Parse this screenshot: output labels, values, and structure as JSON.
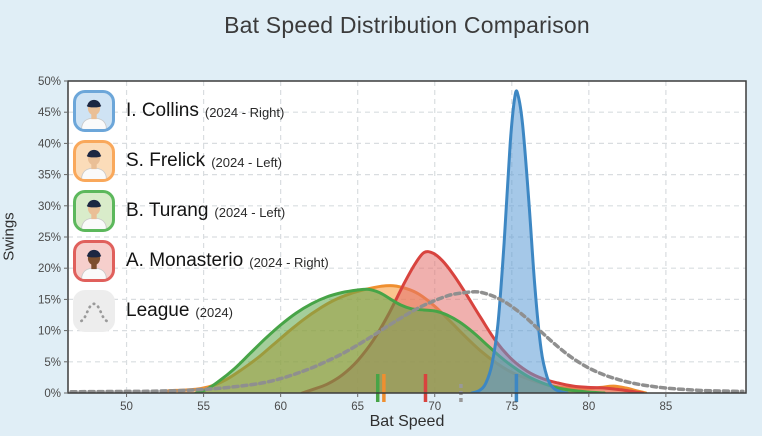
{
  "page": {
    "background": "#e0eef6"
  },
  "chart_data": {
    "type": "area",
    "title": "Bat Speed Distribution Comparison",
    "xlabel": "Bat Speed",
    "ylabel": "Swings",
    "xlim": [
      46.2,
      90.2
    ],
    "ylim": [
      0,
      50
    ],
    "x_ticks": [
      50,
      55,
      60,
      65,
      70,
      75,
      80,
      85
    ],
    "y_ticks": [
      0,
      5,
      10,
      15,
      20,
      25,
      30,
      35,
      40,
      45,
      50
    ],
    "y_tick_suffix": "%",
    "grid": true,
    "legend_position": "top-left",
    "plot_background": "#ffffff",
    "axis_color": "#3c3c3c",
    "grid_color": "#d9dde0",
    "draw_order": [
      "S. Frelick",
      "A. Monasterio",
      "B. Turang",
      "I. Collins",
      "League"
    ],
    "series": [
      {
        "name": "I. Collins",
        "meta": "(2024 - Right)",
        "line_color": "#3d87c3",
        "fill_color": "#5b9bd5",
        "fill_opacity": 0.55,
        "dash": null,
        "mean": 75.3,
        "avatar": {
          "type": "player",
          "border": "#6ca6d9",
          "bg": "#cfe3f4",
          "skin": "#eabf96",
          "cap": "#1c2742"
        },
        "points": [
          [
            72.4,
            0
          ],
          [
            72.9,
            0.4
          ],
          [
            73.3,
            1.5
          ],
          [
            73.7,
            4.5
          ],
          [
            74.1,
            11
          ],
          [
            74.5,
            24
          ],
          [
            74.9,
            40
          ],
          [
            75.2,
            47.5
          ],
          [
            75.4,
            47.8
          ],
          [
            75.7,
            43
          ],
          [
            76.1,
            31
          ],
          [
            76.5,
            17
          ],
          [
            76.9,
            7
          ],
          [
            77.3,
            2.5
          ],
          [
            77.7,
            0.8
          ],
          [
            78.2,
            0.2
          ],
          [
            78.6,
            0
          ]
        ]
      },
      {
        "name": "S. Frelick",
        "meta": "(2024 - Left)",
        "line_color": "#ef8f30",
        "fill_color": "#f79c43",
        "fill_opacity": 0.6,
        "dash": null,
        "mean": 66.7,
        "avatar": {
          "type": "player",
          "border": "#f9a85b",
          "bg": "#fbdcb9",
          "skin": "#eabf96",
          "cap": "#1c2742"
        },
        "points": [
          [
            52.3,
            0
          ],
          [
            52.7,
            0.35
          ],
          [
            53.5,
            0.45
          ],
          [
            54.5,
            0.6
          ],
          [
            55.5,
            1.1
          ],
          [
            56.5,
            2.2
          ],
          [
            57.5,
            3.8
          ],
          [
            58.5,
            5.6
          ],
          [
            59.5,
            7.7
          ],
          [
            60.5,
            9.8
          ],
          [
            61.5,
            11.8
          ],
          [
            62.5,
            13.5
          ],
          [
            63.5,
            14.9
          ],
          [
            64.5,
            15.9
          ],
          [
            65.5,
            16.6
          ],
          [
            66.5,
            17.1
          ],
          [
            67.3,
            17.2
          ],
          [
            68.2,
            16.7
          ],
          [
            69,
            15.8
          ],
          [
            70,
            13.9
          ],
          [
            71,
            11.5
          ],
          [
            72,
            9
          ],
          [
            73,
            6.7
          ],
          [
            74,
            4.8
          ],
          [
            75,
            3.3
          ],
          [
            76,
            2.3
          ],
          [
            77,
            1.5
          ],
          [
            78,
            1.0
          ],
          [
            79,
            0.7
          ],
          [
            80,
            0.7
          ],
          [
            80.8,
            0.9
          ],
          [
            81.6,
            1.1
          ],
          [
            82.4,
            0.8
          ],
          [
            83.1,
            0.35
          ],
          [
            83.7,
            0
          ]
        ]
      },
      {
        "name": "B. Turang",
        "meta": "(2024 - Left)",
        "line_color": "#47a447",
        "fill_color": "#5aa648",
        "fill_opacity": 0.55,
        "dash": null,
        "mean": 66.3,
        "avatar": {
          "type": "player",
          "border": "#5cb85c",
          "bg": "#d9ecca",
          "skin": "#eabf96",
          "cap": "#1c2742"
        },
        "points": [
          [
            54.5,
            0
          ],
          [
            55.2,
            0.6
          ],
          [
            56,
            1.9
          ],
          [
            57,
            3.9
          ],
          [
            58,
            6.3
          ],
          [
            59,
            8.7
          ],
          [
            60,
            10.9
          ],
          [
            61,
            12.8
          ],
          [
            62,
            14.3
          ],
          [
            63,
            15.4
          ],
          [
            64,
            16.1
          ],
          [
            65,
            16.5
          ],
          [
            65.7,
            16.6
          ],
          [
            66.4,
            16.1
          ],
          [
            67.1,
            15.1
          ],
          [
            67.8,
            14.1
          ],
          [
            68.5,
            13.5
          ],
          [
            69.3,
            13.3
          ],
          [
            70.1,
            13.1
          ],
          [
            70.8,
            12.5
          ],
          [
            71.6,
            11.4
          ],
          [
            72.5,
            9.7
          ],
          [
            73.4,
            7.7
          ],
          [
            74.3,
            5.7
          ],
          [
            75.2,
            4.0
          ],
          [
            76.1,
            2.6
          ],
          [
            77,
            1.6
          ],
          [
            78,
            0.8
          ],
          [
            79,
            0.4
          ],
          [
            80,
            0.15
          ],
          [
            81,
            0
          ]
        ]
      },
      {
        "name": "A. Monasterio",
        "meta": "(2024 - Right)",
        "line_color": "#d8433e",
        "fill_color": "#e4706c",
        "fill_opacity": 0.55,
        "dash": null,
        "mean": 69.4,
        "avatar": {
          "type": "player",
          "border": "#e0605c",
          "bg": "#f6cfcc",
          "skin": "#7d4f2e",
          "cap": "#1c2742"
        },
        "points": [
          [
            61.4,
            0
          ],
          [
            62,
            0.5
          ],
          [
            63,
            1.4
          ],
          [
            64,
            2.9
          ],
          [
            65,
            5.2
          ],
          [
            66,
            8.4
          ],
          [
            67,
            12.6
          ],
          [
            68,
            17.5
          ],
          [
            68.7,
            20.6
          ],
          [
            69.3,
            22.5
          ],
          [
            69.9,
            22.4
          ],
          [
            70.5,
            21.2
          ],
          [
            71.2,
            19.0
          ],
          [
            72,
            16.0
          ],
          [
            73,
            12.0
          ],
          [
            74,
            8.2
          ],
          [
            75,
            5.4
          ],
          [
            76,
            3.5
          ],
          [
            77,
            2.3
          ],
          [
            78,
            1.6
          ],
          [
            79,
            1.1
          ],
          [
            80,
            0.9
          ],
          [
            81,
            0.8
          ],
          [
            82,
            0.55
          ],
          [
            82.8,
            0.25
          ],
          [
            83.5,
            0
          ]
        ]
      },
      {
        "name": "League",
        "meta": "(2024)",
        "line_color": "#8f8f8f",
        "fill_color": null,
        "fill_opacity": 0,
        "dash": "5 4",
        "mean": 71.7,
        "avatar": {
          "type": "curve",
          "border": "#ededed",
          "bg": "#ededed",
          "curve_color": "#9a9a9a"
        },
        "points": [
          [
            46.4,
            0.2
          ],
          [
            48,
            0.22
          ],
          [
            50,
            0.25
          ],
          [
            52,
            0.3
          ],
          [
            54,
            0.45
          ],
          [
            56,
            0.75
          ],
          [
            58,
            1.3
          ],
          [
            59,
            1.7
          ],
          [
            60,
            2.3
          ],
          [
            61,
            3.1
          ],
          [
            62,
            4.0
          ],
          [
            63,
            5.1
          ],
          [
            64,
            6.3
          ],
          [
            65,
            7.7
          ],
          [
            66,
            9.2
          ],
          [
            67,
            10.8
          ],
          [
            68,
            12.3
          ],
          [
            69,
            13.7
          ],
          [
            70,
            14.8
          ],
          [
            71,
            15.7
          ],
          [
            72,
            16.1
          ],
          [
            72.8,
            16.2
          ],
          [
            73.6,
            15.7
          ],
          [
            74.4,
            14.8
          ],
          [
            75.2,
            13.5
          ],
          [
            76,
            11.9
          ],
          [
            77,
            9.6
          ],
          [
            78,
            7.4
          ],
          [
            79,
            5.5
          ],
          [
            80,
            4.0
          ],
          [
            81,
            2.9
          ],
          [
            82,
            2.1
          ],
          [
            83,
            1.5
          ],
          [
            84,
            1.1
          ],
          [
            85,
            0.8
          ],
          [
            86,
            0.6
          ],
          [
            87,
            0.45
          ],
          [
            88,
            0.35
          ],
          [
            89,
            0.3
          ],
          [
            90,
            0.25
          ]
        ]
      }
    ]
  }
}
